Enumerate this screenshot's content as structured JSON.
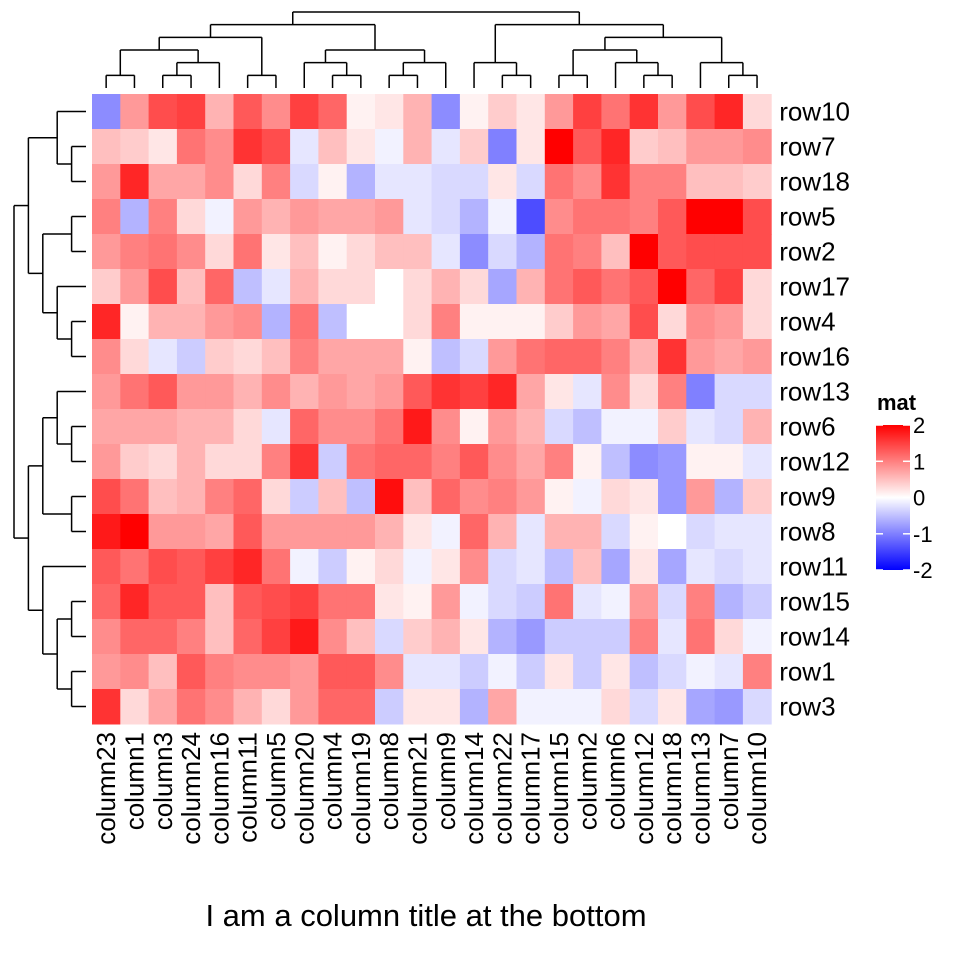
{
  "chart_data": {
    "type": "heatmap",
    "xlabel": "I am a column title at the bottom",
    "columns": [
      "column23",
      "column1",
      "column3",
      "column24",
      "column16",
      "column11",
      "column5",
      "column20",
      "column4",
      "column19",
      "column8",
      "column21",
      "column9",
      "column14",
      "column22",
      "column17",
      "column15",
      "column2",
      "column6",
      "column12",
      "column18",
      "column13",
      "column7",
      "column10"
    ],
    "rows": [
      "row10",
      "row7",
      "row18",
      "row5",
      "row2",
      "row17",
      "row4",
      "row16",
      "row13",
      "row6",
      "row12",
      "row9",
      "row8",
      "row11",
      "row15",
      "row14",
      "row1",
      "row3"
    ],
    "values": [
      [
        -0.9,
        0.8,
        1.4,
        1.5,
        0.6,
        1.3,
        0.9,
        1.5,
        1.2,
        0.1,
        0.2,
        0.6,
        -0.9,
        0.1,
        0.4,
        0.2,
        0.8,
        1.5,
        1.1,
        1.6,
        0.8,
        1.4,
        1.7,
        0.3
      ],
      [
        0.5,
        0.4,
        0.2,
        1.1,
        0.9,
        1.6,
        1.4,
        -0.2,
        0.5,
        0.2,
        -0.1,
        0.6,
        -0.2,
        0.4,
        -1.0,
        0.2,
        2.0,
        1.3,
        1.7,
        0.4,
        0.5,
        0.8,
        0.8,
        0.9
      ],
      [
        0.8,
        1.7,
        0.7,
        0.7,
        0.9,
        0.3,
        1.0,
        -0.3,
        0.1,
        -0.6,
        -0.2,
        -0.2,
        -0.3,
        -0.3,
        0.2,
        -0.3,
        1.1,
        0.9,
        1.6,
        1.0,
        1.0,
        0.5,
        0.5,
        0.4
      ],
      [
        1.0,
        -0.6,
        1.0,
        0.3,
        -0.1,
        0.8,
        0.6,
        0.8,
        0.7,
        0.7,
        0.8,
        -0.2,
        -0.3,
        -0.6,
        -0.1,
        -1.4,
        0.9,
        1.1,
        1.1,
        1.0,
        1.3,
        2.0,
        2.0,
        1.4
      ],
      [
        0.8,
        1.0,
        1.1,
        0.9,
        0.3,
        1.1,
        0.2,
        0.5,
        0.1,
        0.3,
        0.5,
        0.5,
        -0.2,
        -0.9,
        -0.3,
        -0.6,
        1.1,
        1.0,
        0.5,
        2.0,
        1.3,
        1.4,
        1.4,
        1.4
      ],
      [
        0.4,
        0.8,
        1.4,
        0.5,
        1.2,
        -0.5,
        -0.2,
        0.6,
        0.3,
        0.3,
        0.0,
        0.3,
        0.6,
        0.3,
        -0.7,
        0.6,
        1.1,
        1.3,
        1.1,
        1.3,
        2.0,
        1.2,
        1.5,
        0.3
      ],
      [
        1.7,
        0.1,
        0.6,
        0.6,
        0.8,
        0.9,
        -0.6,
        1.1,
        -0.5,
        0.0,
        0.0,
        0.3,
        1.0,
        0.1,
        0.1,
        0.1,
        0.4,
        0.8,
        0.7,
        1.4,
        0.3,
        0.9,
        0.8,
        0.3
      ],
      [
        0.9,
        0.3,
        -0.2,
        -0.4,
        0.4,
        0.3,
        0.5,
        1.0,
        0.7,
        0.7,
        0.7,
        0.1,
        -0.5,
        -0.3,
        0.8,
        1.1,
        1.2,
        1.2,
        1.0,
        0.6,
        1.6,
        0.8,
        0.7,
        0.8
      ],
      [
        0.8,
        1.1,
        1.3,
        0.8,
        0.8,
        0.6,
        0.9,
        0.6,
        0.8,
        0.7,
        0.8,
        1.3,
        1.6,
        1.5,
        1.7,
        0.7,
        0.2,
        -0.2,
        0.9,
        0.3,
        1.0,
        -1.0,
        -0.3,
        -0.3
      ],
      [
        0.7,
        0.7,
        0.7,
        0.6,
        0.6,
        0.3,
        -0.2,
        1.2,
        0.9,
        0.9,
        1.1,
        1.8,
        0.9,
        0.1,
        0.8,
        0.6,
        -0.3,
        -0.5,
        -0.1,
        -0.1,
        0.4,
        -0.2,
        -0.3,
        0.6
      ],
      [
        0.8,
        0.4,
        0.3,
        0.6,
        0.3,
        0.3,
        1.0,
        1.6,
        -0.4,
        1.1,
        1.2,
        1.2,
        1.0,
        1.3,
        0.9,
        0.7,
        1.0,
        0.1,
        -0.5,
        -0.9,
        -0.8,
        0.1,
        0.1,
        -0.2
      ],
      [
        1.4,
        1.1,
        0.5,
        0.6,
        1.0,
        1.2,
        0.3,
        -0.4,
        0.5,
        -0.5,
        1.9,
        0.5,
        1.2,
        0.9,
        1.0,
        0.8,
        0.1,
        -0.1,
        0.3,
        0.2,
        -0.8,
        0.8,
        -0.6,
        0.4
      ],
      [
        1.8,
        2.0,
        0.8,
        0.8,
        0.7,
        1.3,
        0.8,
        0.8,
        0.8,
        0.8,
        0.6,
        0.2,
        -0.1,
        1.2,
        0.6,
        -0.2,
        0.6,
        0.6,
        -0.3,
        0.1,
        0.0,
        -0.3,
        -0.2,
        -0.2
      ],
      [
        1.3,
        1.1,
        1.4,
        1.3,
        1.5,
        1.7,
        1.1,
        -0.1,
        -0.4,
        0.1,
        0.3,
        -0.1,
        0.2,
        0.9,
        -0.3,
        -0.2,
        -0.5,
        0.5,
        -0.7,
        0.2,
        -0.7,
        -0.2,
        -0.3,
        -0.2
      ],
      [
        1.2,
        1.7,
        1.3,
        1.3,
        0.5,
        1.3,
        1.4,
        1.5,
        1.1,
        1.1,
        0.2,
        0.1,
        0.8,
        -0.1,
        -0.3,
        -0.4,
        1.1,
        -0.2,
        -0.1,
        0.8,
        -0.3,
        1.0,
        -0.6,
        -0.4
      ],
      [
        0.9,
        1.2,
        1.2,
        1.0,
        0.5,
        1.2,
        1.5,
        1.8,
        0.9,
        0.5,
        -0.3,
        0.4,
        0.6,
        0.2,
        -0.6,
        -0.8,
        -0.4,
        -0.4,
        -0.4,
        1.0,
        -0.2,
        1.1,
        0.3,
        -0.1
      ],
      [
        0.8,
        0.9,
        0.5,
        1.3,
        1.0,
        0.9,
        0.9,
        0.8,
        1.3,
        1.3,
        0.9,
        -0.2,
        -0.2,
        -0.4,
        -0.1,
        -0.4,
        0.2,
        -0.4,
        0.2,
        -0.5,
        -0.3,
        -0.1,
        -0.2,
        1.0
      ],
      [
        1.6,
        0.3,
        0.7,
        1.1,
        0.9,
        0.6,
        0.3,
        0.8,
        1.2,
        1.2,
        -0.4,
        0.2,
        0.2,
        -0.6,
        0.7,
        -0.1,
        -0.1,
        -0.1,
        0.3,
        -0.3,
        0.2,
        -0.7,
        -0.8,
        -0.3
      ]
    ],
    "color_scale": {
      "low": "#0000ff",
      "mid": "#ffffff",
      "high": "#ff0000",
      "domain": [
        -2,
        0,
        2
      ]
    },
    "legend": {
      "title": "mat",
      "ticks": [
        2,
        1,
        0,
        -1,
        -2
      ],
      "placement": "right"
    },
    "dendrograms": {
      "rows": "left",
      "columns": "top"
    },
    "grid": false
  }
}
